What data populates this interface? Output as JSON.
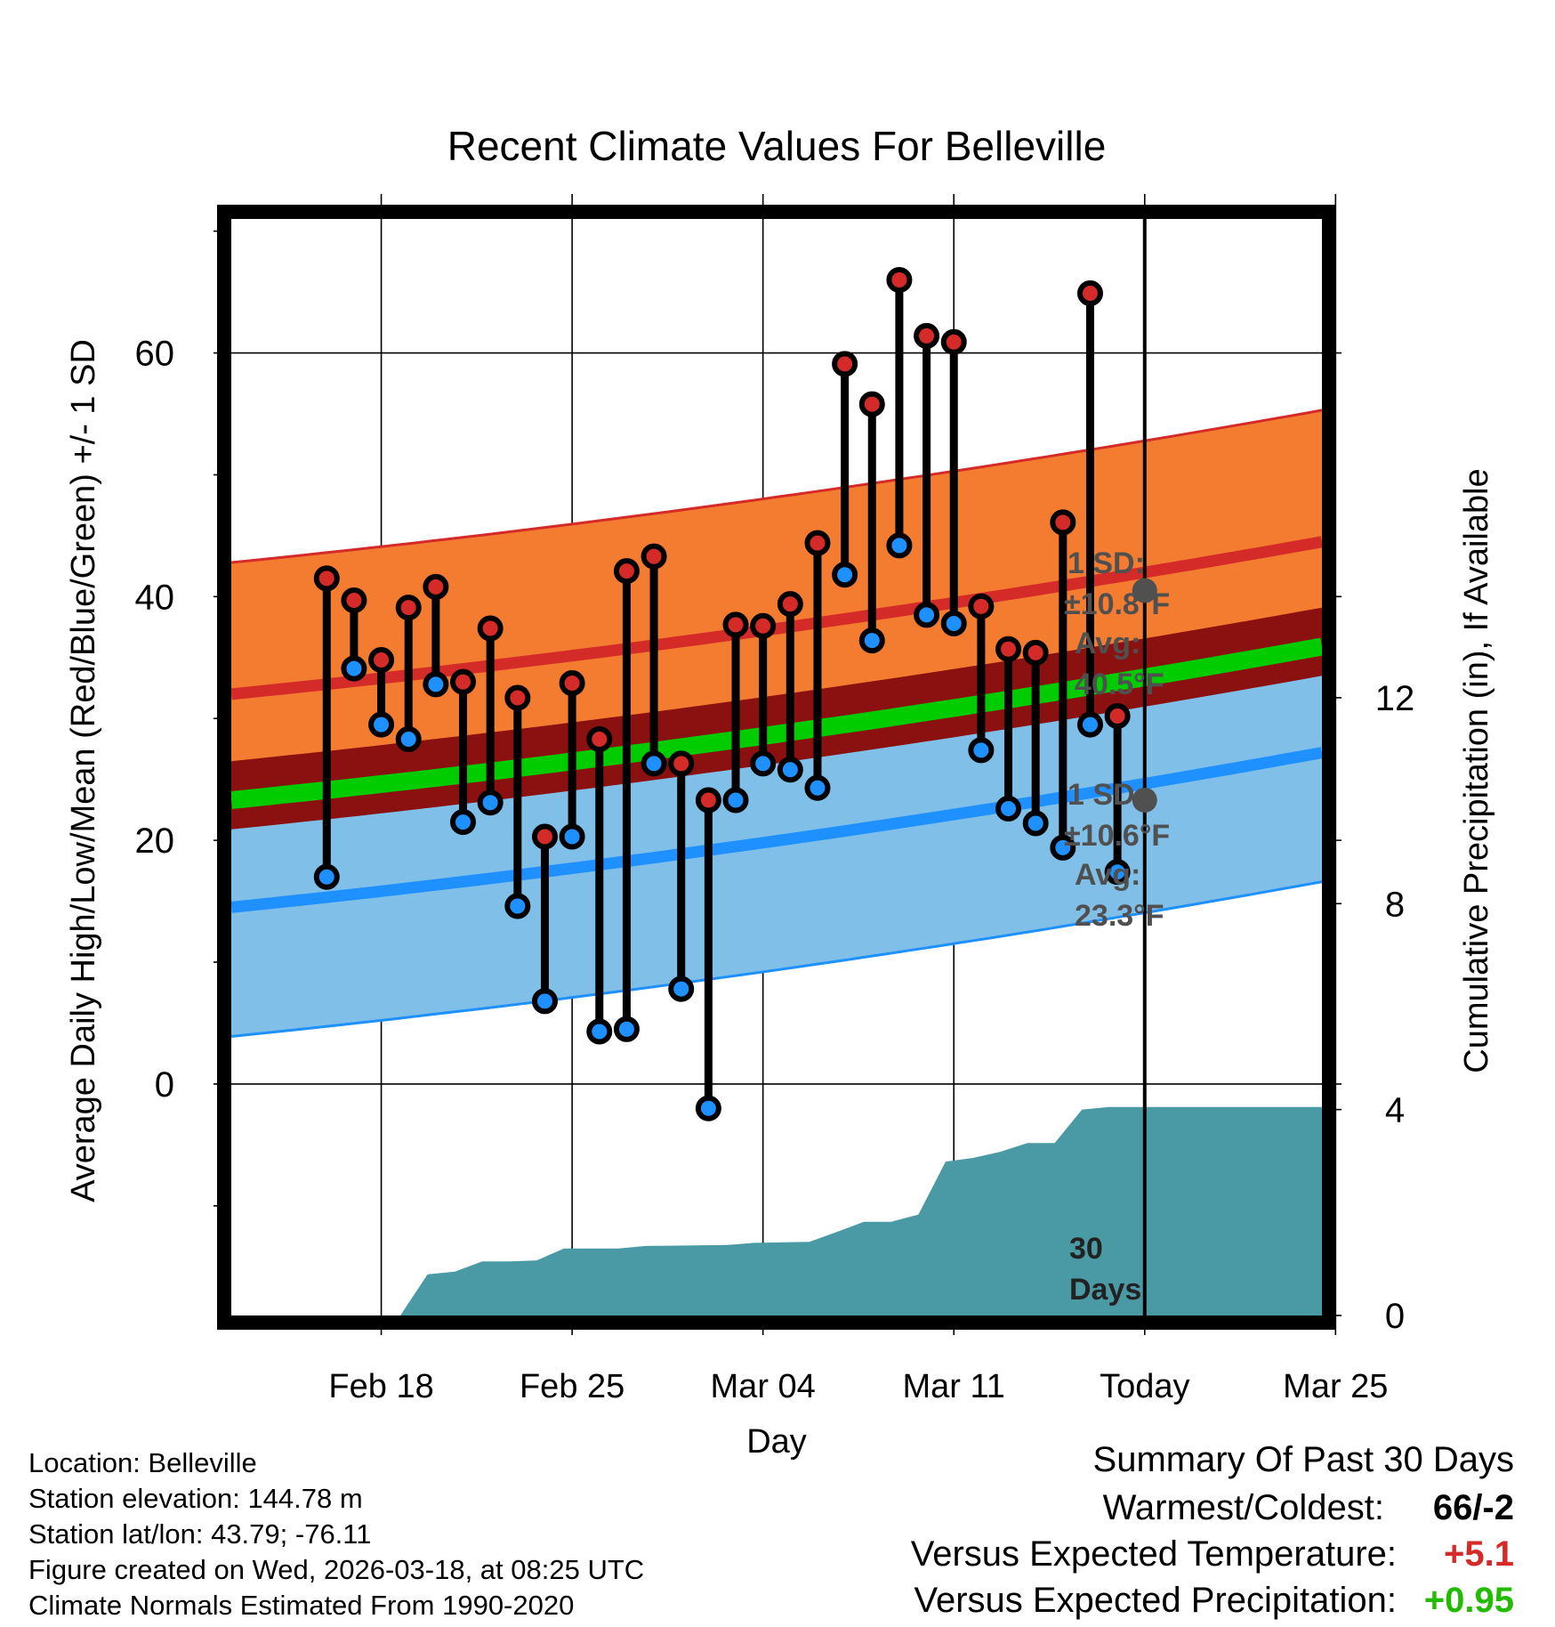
{
  "chart_data": {
    "type": "line",
    "title": "Recent Climate Values For Belleville",
    "xlabel": "Day",
    "ylabel_left": "Average Daily High/Low/Mean (Red/Blue/Green) +/- 1 SD",
    "ylabel_right": "Cumulative Precipitation (in), If Available",
    "x_day_range": [
      -33.5,
      6.5
    ],
    "ylim_left": [
      -19,
      71
    ],
    "ylim_right": [
      0,
      21.3
    ],
    "x_ticks": [
      {
        "day": -28,
        "label": "Feb 18"
      },
      {
        "day": -21,
        "label": "Feb 25"
      },
      {
        "day": -14,
        "label": "Mar 04"
      },
      {
        "day": -7,
        "label": "Mar 11"
      },
      {
        "day": 0,
        "label": "Today"
      },
      {
        "day": 7,
        "label": "Mar 25"
      }
    ],
    "y_ticks_left": [
      0,
      20,
      40,
      60
    ],
    "y_ticks_right": [
      0,
      4,
      8,
      12
    ],
    "normal_high": {
      "start": 32.0,
      "end": 44.5,
      "sd": 10.8
    },
    "normal_low": {
      "start": 14.5,
      "end": 27.2,
      "sd": 10.6
    },
    "normal_mean": {
      "start": 23.3,
      "end": 35.9
    },
    "observed": [
      {
        "day": -30,
        "high": 41.5,
        "low": 17
      },
      {
        "day": -29,
        "high": 39.7,
        "low": 34.1
      },
      {
        "day": -28,
        "high": 34.8,
        "low": 29.5
      },
      {
        "day": -27,
        "high": 39.1,
        "low": 28.3
      },
      {
        "day": -26,
        "high": 40.8,
        "low": 32.8
      },
      {
        "day": -25,
        "high": 33.0,
        "low": 21.5
      },
      {
        "day": -24,
        "high": 37.4,
        "low": 23.1
      },
      {
        "day": -23,
        "high": 31.7,
        "low": 14.6
      },
      {
        "day": -22,
        "high": 20.3,
        "low": 6.8
      },
      {
        "day": -21,
        "high": 32.9,
        "low": 20.3
      },
      {
        "day": -20,
        "high": 28.3,
        "low": 4.3
      },
      {
        "day": -19,
        "high": 42.1,
        "low": 4.5
      },
      {
        "day": -18,
        "high": 43.3,
        "low": 26.3
      },
      {
        "day": -17,
        "high": 26.3,
        "low": 7.8
      },
      {
        "day": -16,
        "high": 23.3,
        "low": -2
      },
      {
        "day": -15,
        "high": 37.7,
        "low": 23.3
      },
      {
        "day": -14,
        "high": 37.6,
        "low": 26.3
      },
      {
        "day": -13,
        "high": 39.4,
        "low": 25.8
      },
      {
        "day": -12,
        "high": 44.4,
        "low": 24.3
      },
      {
        "day": -11,
        "high": 59.1,
        "low": 41.8
      },
      {
        "day": -10,
        "high": 55.8,
        "low": 36.4
      },
      {
        "day": -9,
        "high": 66,
        "low": 44.2
      },
      {
        "day": -8,
        "high": 61.4,
        "low": 38.5
      },
      {
        "day": -7,
        "high": 60.9,
        "low": 37.8
      },
      {
        "day": -6,
        "high": 39.2,
        "low": 27.4
      },
      {
        "day": -5,
        "high": 35.7,
        "low": 22.6
      },
      {
        "day": -4,
        "high": 35.4,
        "low": 21.4
      },
      {
        "day": -3,
        "high": 46.1,
        "low": 19.4
      },
      {
        "day": -2,
        "high": 64.9,
        "low": 29.5
      },
      {
        "day": -1,
        "high": 30.2,
        "low": 17.4
      }
    ],
    "cumulative_precip": [
      {
        "day": -33.5,
        "value": 0
      },
      {
        "day": -27.3,
        "value": 0
      },
      {
        "day": -26.3,
        "value": 0.8
      },
      {
        "day": -25.3,
        "value": 0.85
      },
      {
        "day": -24.3,
        "value": 1.05
      },
      {
        "day": -23.3,
        "value": 1.05
      },
      {
        "day": -22.3,
        "value": 1.07
      },
      {
        "day": -21.3,
        "value": 1.3
      },
      {
        "day": -19.3,
        "value": 1.3
      },
      {
        "day": -18.3,
        "value": 1.35
      },
      {
        "day": -15.3,
        "value": 1.37
      },
      {
        "day": -14.3,
        "value": 1.41
      },
      {
        "day": -12.3,
        "value": 1.43
      },
      {
        "day": -11.3,
        "value": 1.62
      },
      {
        "day": -10.3,
        "value": 1.82
      },
      {
        "day": -9.3,
        "value": 1.82
      },
      {
        "day": -8.3,
        "value": 1.96
      },
      {
        "day": -7.3,
        "value": 2.99
      },
      {
        "day": -6.3,
        "value": 3.06
      },
      {
        "day": -5.3,
        "value": 3.18
      },
      {
        "day": -4.3,
        "value": 3.35
      },
      {
        "day": -3.3,
        "value": 3.35
      },
      {
        "day": -2.3,
        "value": 4.0
      },
      {
        "day": -1.3,
        "value": 4.05
      },
      {
        "day": 6.5,
        "value": 4.05
      }
    ],
    "annotations": {
      "high_sd_label": "1 SD:",
      "high_sd_value": "±10.8°F",
      "high_avg_label": "Avg:",
      "high_avg_value": "40.5°F",
      "high_avg_marker": 40.5,
      "low_sd_label": "1 SD:",
      "low_sd_value": "±10.6°F",
      "low_avg_label": "Avg:",
      "low_avg_value": "23.3°F",
      "low_avg_marker": 23.3,
      "days_number": "30",
      "days_word": "Days"
    },
    "colors": {
      "high_band": "#f47c30",
      "high_line": "#d42a28",
      "low_band": "#80c0e8",
      "low_line": "#1e90ff",
      "mean_band": "#8b1010",
      "mean_line": "#00cc00",
      "precip": "#4a9aa5",
      "high_marker": "#d42a28",
      "low_marker": "#1e90ff",
      "annotation": "#505050",
      "avg_marker": "#505050"
    }
  },
  "info": {
    "location": "Location: Belleville",
    "elevation": "Station elevation: 144.78 m",
    "latlon": "Station lat/lon: 43.79; -76.11",
    "created": "Figure created on Wed, 2026-03-18, at 08:25 UTC",
    "normals": "Climate Normals Estimated From 1990-2020"
  },
  "summary": {
    "title": "Summary Of Past 30 Days",
    "warmest_label": "Warmest/Coldest:",
    "warmest_value": "66/-2",
    "temp_label": "Versus Expected Temperature:",
    "temp_value": "+5.1",
    "temp_color": "#d42a28",
    "precip_label": "Versus Expected Precipitation:",
    "precip_value": "+0.95",
    "precip_color": "#22bb00"
  }
}
